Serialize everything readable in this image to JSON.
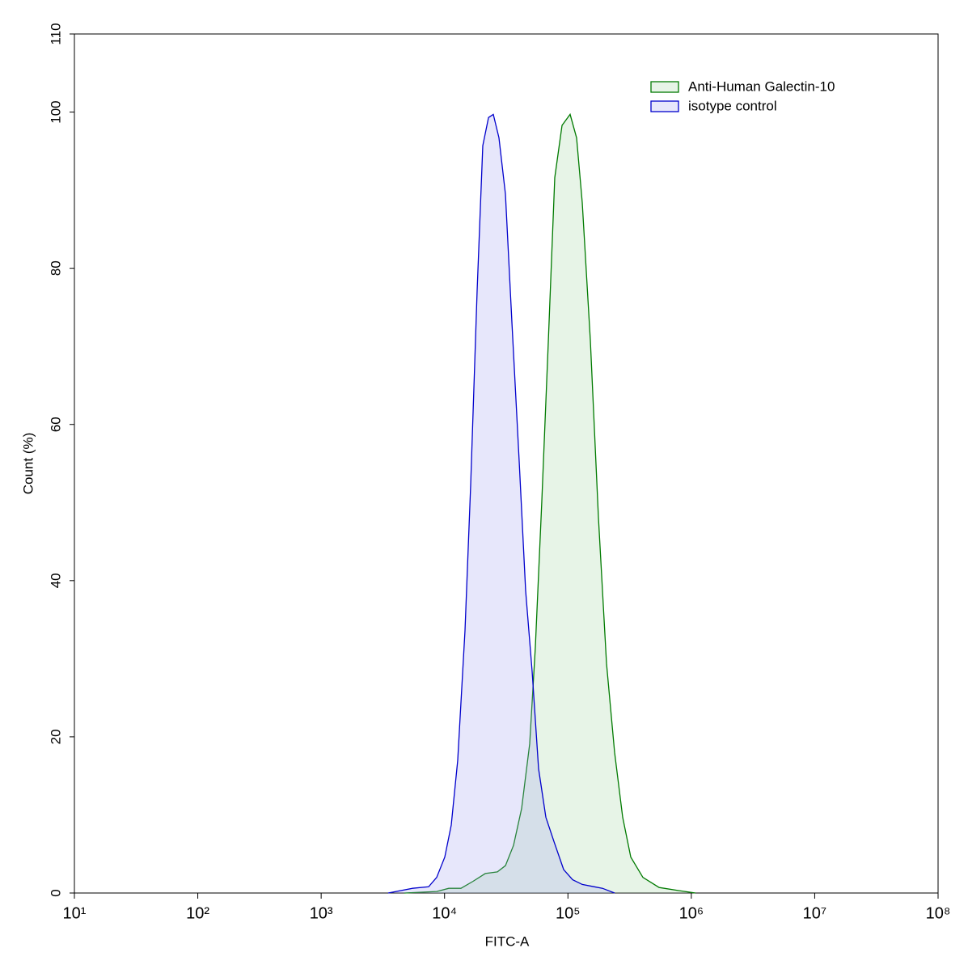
{
  "chart_data": {
    "type": "histogram-overlay",
    "x_label": "FITC-A",
    "y_label": "Count  (%)",
    "xscale": "log",
    "xlim": [
      10,
      100000000
    ],
    "xticks": [
      {
        "value": 10,
        "label": "10¹"
      },
      {
        "value": 100,
        "label": "10²"
      },
      {
        "value": 1000,
        "label": "10³"
      },
      {
        "value": 10000,
        "label": "10⁴"
      },
      {
        "value": 100000,
        "label": "10⁵"
      },
      {
        "value": 1000000,
        "label": "10⁶"
      },
      {
        "value": 10000000,
        "label": "10⁷"
      },
      {
        "value": 100000000,
        "label": "10⁸"
      }
    ],
    "ylim": [
      0,
      110
    ],
    "yticks": [
      0,
      20,
      40,
      60,
      80,
      100,
      110
    ],
    "legend": "upper right",
    "series": [
      {
        "name": "Anti-Human Galectin-10",
        "color": "#007a00",
        "fill": "rgba(160,210,160,0.25)",
        "x": [
          4720,
          8630,
          10830,
          13580,
          17020,
          21380,
          26790,
          31170,
          36240,
          42150,
          49010,
          54460,
          61460,
          69400,
          78260,
          89590,
          104200,
          117600,
          130700,
          152000,
          176700,
          205400,
          239000,
          277800,
          323000,
          405200,
          548600,
          799500,
          1081000
        ],
        "values": [
          0,
          0.2,
          0.6,
          0.6,
          1.5,
          2.5,
          2.7,
          3.5,
          6.1,
          10.8,
          19.1,
          31.5,
          50.2,
          70.8,
          91.6,
          98.3,
          99.7,
          96.7,
          88.4,
          70.8,
          48.1,
          29.4,
          18.0,
          9.7,
          4.6,
          2.0,
          0.7,
          0.3,
          0
        ]
      },
      {
        "name": "isotype control",
        "color": "#0000cc",
        "fill": "rgba(160,160,240,0.25)",
        "x": [
          3490,
          5500,
          7430,
          8630,
          10040,
          11330,
          12790,
          14650,
          16290,
          18370,
          20420,
          22710,
          24850,
          27620,
          31170,
          35180,
          40270,
          45410,
          51270,
          57820,
          66230,
          77070,
          92320,
          109100,
          130700,
          163800,
          190400,
          239000
        ],
        "values": [
          0,
          0.6,
          0.8,
          2.0,
          4.6,
          8.7,
          17.0,
          33.6,
          52.2,
          77.1,
          95.7,
          99.3,
          99.7,
          96.7,
          89.5,
          72.9,
          55.3,
          38.7,
          28.4,
          15.9,
          9.7,
          6.6,
          3.0,
          1.7,
          1.1,
          0.8,
          0.6,
          0
        ]
      }
    ]
  }
}
